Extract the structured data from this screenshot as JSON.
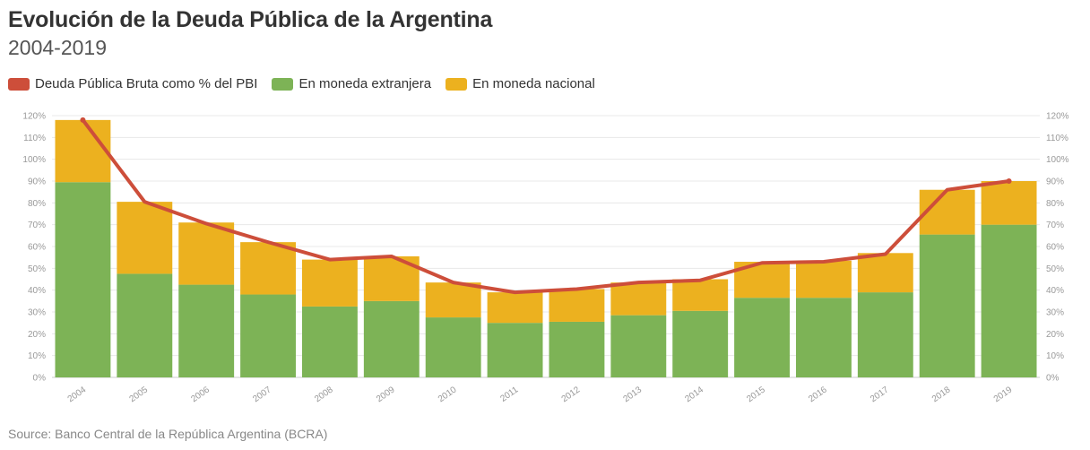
{
  "header": {
    "title": "Evolución de la Deuda Pública de la Argentina",
    "subtitle": "2004-2019"
  },
  "legend": {
    "items": [
      {
        "label": "Deuda Pública Bruta como % del PBI",
        "color": "#cd4e3a"
      },
      {
        "label": "En moneda extranjera",
        "color": "#7db356"
      },
      {
        "label": "En moneda nacional",
        "color": "#ecb11f"
      }
    ]
  },
  "footer": {
    "source": "Source: Banco Central de la República Argentina (BCRA)"
  },
  "chart_data": {
    "type": "bar",
    "stacked": true,
    "categories": [
      "2004",
      "2005",
      "2006",
      "2007",
      "2008",
      "2009",
      "2010",
      "2011",
      "2012",
      "2013",
      "2014",
      "2015",
      "2016",
      "2017",
      "2018",
      "2019"
    ],
    "series": [
      {
        "name": "En moneda extranjera",
        "type": "bar",
        "color": "#7db356",
        "values": [
          89.5,
          47.5,
          42.5,
          38,
          32.5,
          35,
          27.5,
          25,
          25.5,
          28.5,
          30.5,
          36.5,
          36.5,
          39,
          65.5,
          70
        ]
      },
      {
        "name": "En moneda nacional",
        "type": "bar",
        "color": "#ecb11f",
        "values": [
          28.5,
          33,
          28.5,
          24,
          21.5,
          20.5,
          16,
          14,
          15,
          15,
          14.5,
          16.5,
          17,
          18,
          20.5,
          20
        ]
      },
      {
        "name": "Deuda Pública Bruta como % del PBI",
        "type": "line",
        "color": "#cd4e3a",
        "values": [
          118,
          80.5,
          70.5,
          62,
          54,
          55.5,
          43.5,
          39,
          40.5,
          43.5,
          44.5,
          52.5,
          53,
          56.5,
          86,
          90
        ]
      }
    ],
    "y_ticks": [
      "0%",
      "10%",
      "20%",
      "30%",
      "40%",
      "50%",
      "60%",
      "70%",
      "80%",
      "90%",
      "100%",
      "110%",
      "120%"
    ],
    "ylim": [
      0,
      120
    ],
    "grid": true,
    "legend_position": "top-left"
  }
}
